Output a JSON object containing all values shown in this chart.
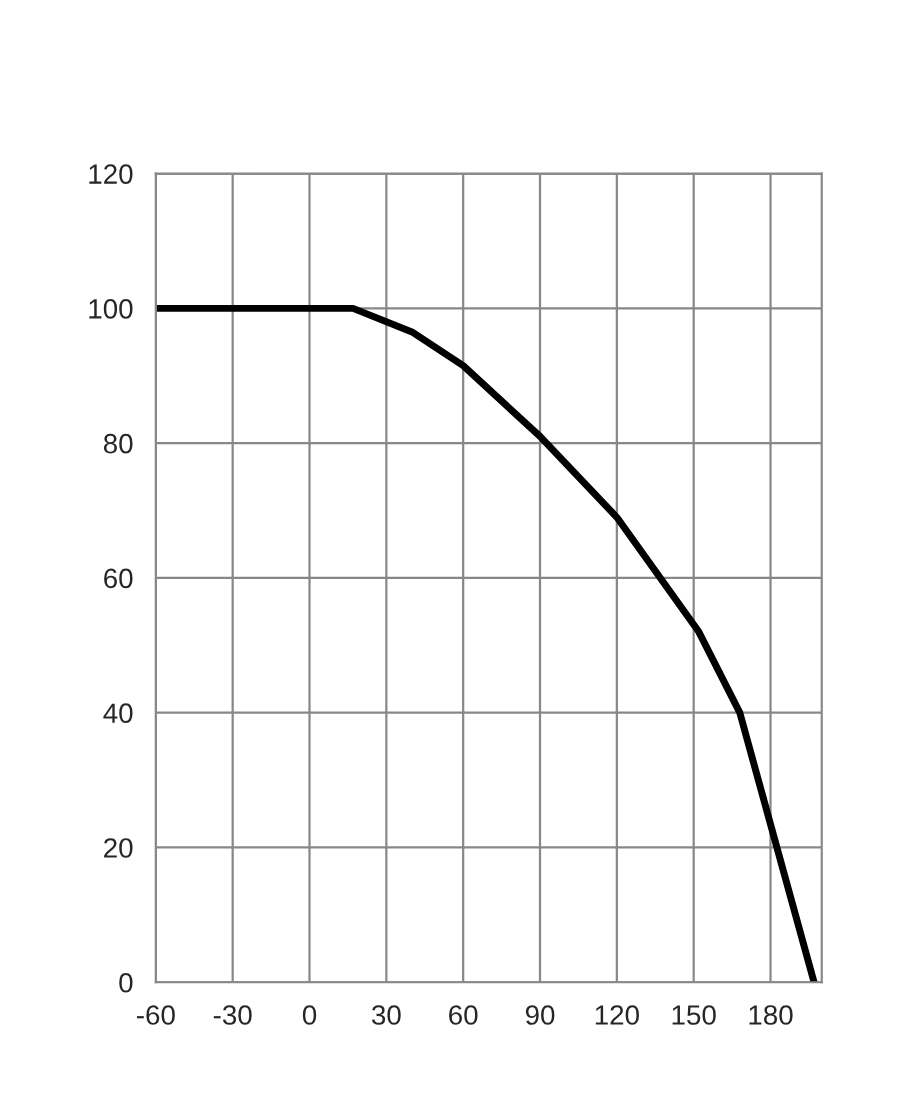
{
  "chart_data": {
    "type": "line",
    "x": [
      -60,
      17,
      40,
      60,
      90,
      120,
      152,
      168,
      197
    ],
    "series": [
      {
        "color": "#000000",
        "values": [
          100,
          100,
          96.5,
          91.5,
          81,
          69,
          52,
          40,
          0
        ]
      }
    ],
    "xlim": [
      -60,
      200
    ],
    "xticks": [
      -60,
      -30,
      0,
      30,
      60,
      90,
      120,
      150,
      180
    ],
    "ylim": [
      0,
      120
    ],
    "yticks": [
      0,
      20,
      40,
      60,
      80,
      100,
      120
    ],
    "grid": true,
    "marker": "none",
    "line_style": "solid"
  }
}
